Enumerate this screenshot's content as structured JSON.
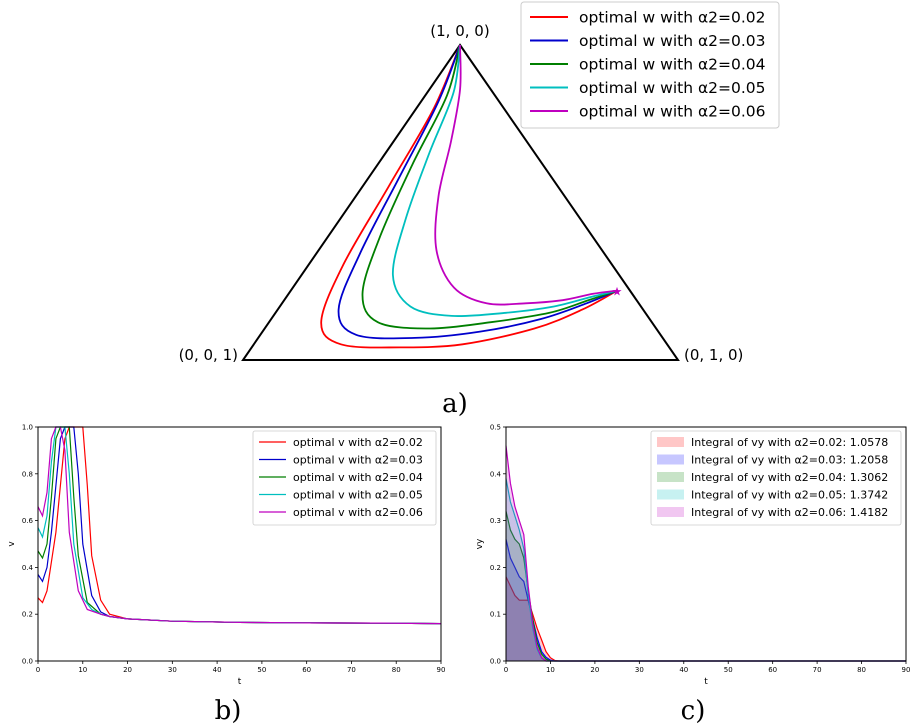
{
  "chart_data": [
    {
      "type": "line",
      "panel_label": "a)",
      "description_visible": "ternary simplex with trajectories",
      "vertex_labels": [
        "(1, 0, 0)",
        "(0, 0, 1)",
        "(0, 1, 0)"
      ],
      "end_point": [
        0.22,
        0.75,
        0.03
      ],
      "series": [
        {
          "name": "optimal w with α2=0.02",
          "color": "#ff0000",
          "points": [
            [
              1.0,
              0.0,
              0.0
            ],
            [
              0.8,
              0.04,
              0.16
            ],
            [
              0.55,
              0.06,
              0.39
            ],
            [
              0.3,
              0.08,
              0.62
            ],
            [
              0.12,
              0.12,
              0.76
            ],
            [
              0.05,
              0.2,
              0.75
            ],
            [
              0.04,
              0.34,
              0.62
            ],
            [
              0.05,
              0.48,
              0.47
            ],
            [
              0.1,
              0.62,
              0.28
            ],
            [
              0.16,
              0.7,
              0.14
            ],
            [
              0.22,
              0.75,
              0.03
            ]
          ]
        },
        {
          "name": "optimal w with α2=0.03",
          "color": "#0000cc",
          "points": [
            [
              1.0,
              0.0,
              0.0
            ],
            [
              0.82,
              0.04,
              0.14
            ],
            [
              0.58,
              0.07,
              0.35
            ],
            [
              0.34,
              0.1,
              0.56
            ],
            [
              0.16,
              0.14,
              0.7
            ],
            [
              0.08,
              0.22,
              0.7
            ],
            [
              0.07,
              0.36,
              0.57
            ],
            [
              0.09,
              0.5,
              0.41
            ],
            [
              0.13,
              0.62,
              0.25
            ],
            [
              0.18,
              0.7,
              0.12
            ],
            [
              0.22,
              0.75,
              0.03
            ]
          ]
        },
        {
          "name": "optimal w with α2=0.04",
          "color": "#007f00",
          "points": [
            [
              1.0,
              0.0,
              0.0
            ],
            [
              0.84,
              0.05,
              0.11
            ],
            [
              0.62,
              0.08,
              0.3
            ],
            [
              0.39,
              0.12,
              0.49
            ],
            [
              0.21,
              0.17,
              0.62
            ],
            [
              0.12,
              0.25,
              0.63
            ],
            [
              0.1,
              0.38,
              0.52
            ],
            [
              0.12,
              0.51,
              0.37
            ],
            [
              0.15,
              0.63,
              0.22
            ],
            [
              0.19,
              0.7,
              0.11
            ],
            [
              0.22,
              0.75,
              0.03
            ]
          ]
        },
        {
          "name": "optimal w with α2=0.05",
          "color": "#00bfbf",
          "points": [
            [
              1.0,
              0.0,
              0.0
            ],
            [
              0.85,
              0.06,
              0.09
            ],
            [
              0.66,
              0.1,
              0.24
            ],
            [
              0.45,
              0.15,
              0.4
            ],
            [
              0.27,
              0.21,
              0.52
            ],
            [
              0.17,
              0.3,
              0.53
            ],
            [
              0.14,
              0.41,
              0.45
            ],
            [
              0.15,
              0.53,
              0.32
            ],
            [
              0.17,
              0.63,
              0.2
            ],
            [
              0.2,
              0.7,
              0.1
            ],
            [
              0.22,
              0.75,
              0.03
            ]
          ]
        },
        {
          "name": "optimal w with α2=0.06",
          "color": "#bf00bf",
          "points": [
            [
              1.0,
              0.0,
              0.0
            ],
            [
              0.86,
              0.07,
              0.07
            ],
            [
              0.7,
              0.13,
              0.17
            ],
            [
              0.52,
              0.19,
              0.29
            ],
            [
              0.35,
              0.27,
              0.38
            ],
            [
              0.23,
              0.37,
              0.4
            ],
            [
              0.18,
              0.47,
              0.35
            ],
            [
              0.18,
              0.56,
              0.26
            ],
            [
              0.19,
              0.64,
              0.17
            ],
            [
              0.21,
              0.7,
              0.09
            ],
            [
              0.22,
              0.75,
              0.03
            ]
          ]
        }
      ]
    },
    {
      "type": "line",
      "panel_label": "b)",
      "xlabel": "t",
      "ylabel": "v",
      "xlim": [
        0,
        90
      ],
      "ylim": [
        0,
        1.0
      ],
      "xticks": [
        0,
        10,
        20,
        30,
        40,
        50,
        60,
        70,
        80,
        90
      ],
      "yticks": [
        0.0,
        0.2,
        0.4,
        0.6,
        0.8,
        1.0
      ],
      "legend_position": "top-right",
      "series": [
        {
          "name": "optimal v with α2=0.02",
          "color": "#ff0000",
          "x": [
            0,
            1,
            2,
            4,
            6,
            7,
            8,
            9,
            10,
            11,
            12,
            14,
            16,
            20,
            30,
            45,
            60,
            75,
            90
          ],
          "y": [
            0.27,
            0.25,
            0.3,
            0.55,
            0.95,
            1.0,
            1.0,
            1.0,
            1.0,
            0.75,
            0.45,
            0.26,
            0.2,
            0.18,
            0.17,
            0.165,
            0.163,
            0.162,
            0.16
          ]
        },
        {
          "name": "optimal v with α2=0.03",
          "color": "#0000cc",
          "x": [
            0,
            1,
            2,
            3,
            5,
            6,
            7,
            8,
            9,
            10,
            12,
            14,
            16,
            20,
            30,
            45,
            60,
            75,
            90
          ],
          "y": [
            0.37,
            0.34,
            0.4,
            0.55,
            0.95,
            1.0,
            1.0,
            1.0,
            0.8,
            0.5,
            0.28,
            0.21,
            0.19,
            0.18,
            0.17,
            0.165,
            0.163,
            0.162,
            0.16
          ]
        },
        {
          "name": "optimal v with α2=0.04",
          "color": "#007f00",
          "x": [
            0,
            1,
            2,
            3,
            4,
            5,
            6,
            7,
            8,
            9,
            11,
            14,
            16,
            20,
            30,
            45,
            60,
            75,
            90
          ],
          "y": [
            0.47,
            0.44,
            0.5,
            0.7,
            0.95,
            1.0,
            1.0,
            1.0,
            0.7,
            0.45,
            0.25,
            0.2,
            0.19,
            0.18,
            0.17,
            0.165,
            0.163,
            0.162,
            0.16
          ]
        },
        {
          "name": "optimal v with α2=0.05",
          "color": "#00bfbf",
          "x": [
            0,
            1,
            2,
            3,
            4,
            5,
            6,
            7,
            8,
            10,
            12,
            14,
            16,
            20,
            30,
            45,
            60,
            75,
            90
          ],
          "y": [
            0.57,
            0.53,
            0.62,
            0.85,
            1.0,
            1.0,
            1.0,
            0.8,
            0.5,
            0.27,
            0.22,
            0.2,
            0.19,
            0.18,
            0.17,
            0.165,
            0.163,
            0.162,
            0.16
          ]
        },
        {
          "name": "optimal v with α2=0.06",
          "color": "#bf00bf",
          "x": [
            0,
            1,
            2,
            3,
            4,
            5,
            6,
            7,
            9,
            11,
            14,
            16,
            20,
            30,
            45,
            60,
            75,
            90
          ],
          "y": [
            0.66,
            0.62,
            0.72,
            0.95,
            1.0,
            1.0,
            0.9,
            0.55,
            0.3,
            0.22,
            0.2,
            0.19,
            0.18,
            0.17,
            0.165,
            0.163,
            0.162,
            0.16
          ]
        }
      ]
    },
    {
      "type": "area",
      "panel_label": "c)",
      "xlabel": "t",
      "ylabel": "vy",
      "xlim": [
        0,
        90
      ],
      "ylim": [
        0,
        0.5
      ],
      "xticks": [
        0,
        10,
        20,
        30,
        40,
        50,
        60,
        70,
        80,
        90
      ],
      "yticks": [
        0.0,
        0.1,
        0.2,
        0.3,
        0.4,
        0.5
      ],
      "legend_position": "top-right",
      "series": [
        {
          "name": "Integral of vy with α2=0.02: 1.0578",
          "color": "#ff0000",
          "x": [
            0,
            1,
            2,
            3,
            4,
            5,
            6,
            7,
            8,
            9,
            10,
            11,
            12,
            90
          ],
          "y": [
            0.18,
            0.16,
            0.14,
            0.13,
            0.13,
            0.13,
            0.1,
            0.07,
            0.045,
            0.02,
            0.007,
            0.001,
            0.0,
            0.0
          ]
        },
        {
          "name": "Integral of vy with α2=0.03: 1.2058",
          "color": "#0000ff",
          "x": [
            0,
            1,
            2,
            3,
            4,
            5,
            6,
            7,
            8,
            9,
            10,
            11,
            90
          ],
          "y": [
            0.26,
            0.22,
            0.2,
            0.18,
            0.17,
            0.13,
            0.09,
            0.05,
            0.02,
            0.008,
            0.002,
            0.0,
            0.0
          ]
        },
        {
          "name": "Integral of vy with α2=0.04: 1.3062",
          "color": "#008000",
          "x": [
            0,
            1,
            2,
            3,
            4,
            5,
            6,
            7,
            8,
            9,
            10,
            90
          ],
          "y": [
            0.32,
            0.28,
            0.26,
            0.25,
            0.22,
            0.15,
            0.09,
            0.04,
            0.015,
            0.004,
            0.0,
            0.0
          ]
        },
        {
          "name": "Integral of vy with α2=0.05: 1.3742",
          "color": "#00bfbf",
          "x": [
            0,
            1,
            2,
            3,
            4,
            5,
            6,
            7,
            8,
            9,
            90
          ],
          "y": [
            0.39,
            0.34,
            0.31,
            0.28,
            0.24,
            0.14,
            0.07,
            0.025,
            0.006,
            0.0,
            0.0
          ]
        },
        {
          "name": "Integral of vy with α2=0.06: 1.4182",
          "color": "#bf00bf",
          "x": [
            0,
            1,
            2,
            3,
            4,
            5,
            6,
            7,
            8,
            9,
            90
          ],
          "y": [
            0.46,
            0.38,
            0.33,
            0.3,
            0.27,
            0.16,
            0.08,
            0.03,
            0.007,
            0.0,
            0.0
          ]
        }
      ]
    }
  ]
}
